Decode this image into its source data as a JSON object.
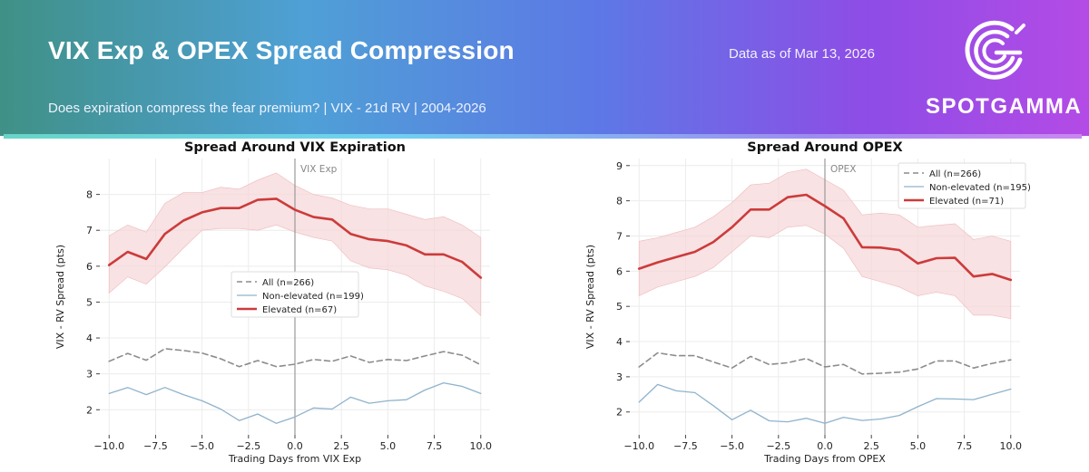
{
  "header": {
    "title": "VIX Exp & OPEX Spread Compression",
    "subtitle": "Does expiration compress the fear premium? | VIX - 21d RV | 2004-2026",
    "as_of": "Data as of Mar 13, 2026",
    "brand": "SPOTGAMMA",
    "logo_icon": "spotgamma-logo-icon"
  },
  "colors": {
    "all": "#8c8c8c",
    "non_elevated": "#8fb3cc",
    "elevated": "#cc3b3b",
    "band": "#f5d5d7"
  },
  "chart_data": [
    {
      "type": "line",
      "title": "Spread Around VIX Expiration",
      "xlabel": "Trading Days from VIX Exp",
      "ylabel": "VIX - RV Spread (pts)",
      "xlim": [
        -10.5,
        10.5
      ],
      "ylim": [
        1.3,
        9.0
      ],
      "xticks": [
        -10,
        -7.5,
        -5,
        -2.5,
        0,
        2.5,
        5,
        7.5,
        10
      ],
      "xtick_labels": [
        "−10.0",
        "−7.5",
        "−5.0",
        "−2.5",
        "0.0",
        "2.5",
        "5.0",
        "7.5",
        "10.0"
      ],
      "yticks": [
        2,
        3,
        4,
        5,
        6,
        7,
        8
      ],
      "grid": true,
      "legend_position": "center",
      "vline": {
        "x": 0,
        "label": "VIX Exp"
      },
      "x": [
        -10,
        -9,
        -8,
        -7,
        -6,
        -5,
        -4,
        -3,
        -2,
        -1,
        0,
        1,
        2,
        3,
        4,
        5,
        6,
        7,
        8,
        9,
        10
      ],
      "series": [
        {
          "name": "All (n=266)",
          "style": "dashed",
          "values": [
            3.35,
            3.57,
            3.38,
            3.7,
            3.65,
            3.58,
            3.42,
            3.2,
            3.37,
            3.2,
            3.27,
            3.4,
            3.35,
            3.5,
            3.32,
            3.4,
            3.37,
            3.5,
            3.62,
            3.52,
            3.25
          ]
        },
        {
          "name": "Non-elevated (n=199)",
          "style": "thin",
          "values": [
            2.45,
            2.62,
            2.42,
            2.62,
            2.42,
            2.25,
            2.02,
            1.7,
            1.88,
            1.62,
            1.8,
            2.05,
            2.02,
            2.35,
            2.18,
            2.25,
            2.28,
            2.55,
            2.75,
            2.65,
            2.45
          ]
        },
        {
          "name": "Elevated (n=67)",
          "style": "thick",
          "values": [
            6.03,
            6.4,
            6.2,
            6.9,
            7.27,
            7.5,
            7.62,
            7.62,
            7.85,
            7.88,
            7.57,
            7.37,
            7.3,
            6.9,
            6.75,
            6.7,
            6.58,
            6.33,
            6.33,
            6.12,
            5.68
          ],
          "band_lower": [
            5.25,
            5.7,
            5.5,
            5.98,
            6.5,
            7.0,
            7.05,
            7.05,
            7.0,
            7.15,
            6.95,
            6.8,
            6.7,
            6.15,
            5.95,
            5.9,
            5.75,
            5.45,
            5.3,
            5.1,
            4.62
          ],
          "band_upper": [
            6.85,
            7.15,
            6.95,
            7.75,
            8.05,
            8.05,
            8.2,
            8.15,
            8.4,
            8.6,
            8.25,
            8.0,
            7.9,
            7.7,
            7.6,
            7.6,
            7.45,
            7.3,
            7.38,
            7.15,
            6.8
          ]
        }
      ]
    },
    {
      "type": "line",
      "title": "Spread Around OPEX",
      "xlabel": "Trading Days from OPEX",
      "ylabel": "VIX - RV Spread (pts)",
      "xlim": [
        -10.5,
        10.5
      ],
      "ylim": [
        1.35,
        9.2
      ],
      "xticks": [
        -10,
        -7.5,
        -5,
        -2.5,
        0,
        2.5,
        5,
        7.5,
        10
      ],
      "xtick_labels": [
        "−10.0",
        "−7.5",
        "−5.0",
        "−2.5",
        "0.0",
        "2.5",
        "5.0",
        "7.5",
        "10.0"
      ],
      "yticks": [
        2,
        3,
        4,
        5,
        6,
        7,
        8,
        9
      ],
      "grid": true,
      "legend_position": "top-right",
      "vline": {
        "x": 0,
        "label": "OPEX"
      },
      "x": [
        -10,
        -9,
        -8,
        -7,
        -6,
        -5,
        -4,
        -3,
        -2,
        -1,
        0,
        1,
        2,
        3,
        4,
        5,
        6,
        7,
        8,
        9,
        10
      ],
      "series": [
        {
          "name": "All (n=266)",
          "style": "dashed",
          "values": [
            3.28,
            3.68,
            3.6,
            3.6,
            3.42,
            3.25,
            3.58,
            3.35,
            3.4,
            3.52,
            3.28,
            3.35,
            3.08,
            3.1,
            3.13,
            3.22,
            3.45,
            3.45,
            3.25,
            3.38,
            3.48
          ]
        },
        {
          "name": "Non-elevated (n=195)",
          "style": "thin",
          "values": [
            2.28,
            2.78,
            2.6,
            2.55,
            2.18,
            1.78,
            2.05,
            1.75,
            1.72,
            1.82,
            1.68,
            1.85,
            1.76,
            1.8,
            1.9,
            2.15,
            2.38,
            2.37,
            2.35,
            2.5,
            2.65
          ]
        },
        {
          "name": "Elevated (n=71)",
          "style": "thick",
          "values": [
            6.07,
            6.25,
            6.4,
            6.55,
            6.83,
            7.25,
            7.75,
            7.75,
            8.1,
            8.17,
            7.85,
            7.5,
            6.68,
            6.67,
            6.6,
            6.22,
            6.37,
            6.38,
            5.85,
            5.92,
            5.75
          ],
          "band_lower": [
            5.3,
            5.55,
            5.7,
            5.85,
            6.1,
            6.55,
            7.0,
            6.95,
            7.25,
            7.3,
            7.05,
            6.65,
            5.85,
            5.7,
            5.55,
            5.3,
            5.4,
            5.3,
            4.75,
            4.75,
            4.65
          ],
          "band_upper": [
            6.85,
            6.95,
            7.1,
            7.25,
            7.55,
            7.95,
            8.45,
            8.5,
            8.8,
            8.9,
            8.6,
            8.3,
            7.6,
            7.65,
            7.6,
            7.25,
            7.3,
            7.35,
            6.9,
            7.0,
            6.85
          ]
        }
      ]
    }
  ]
}
